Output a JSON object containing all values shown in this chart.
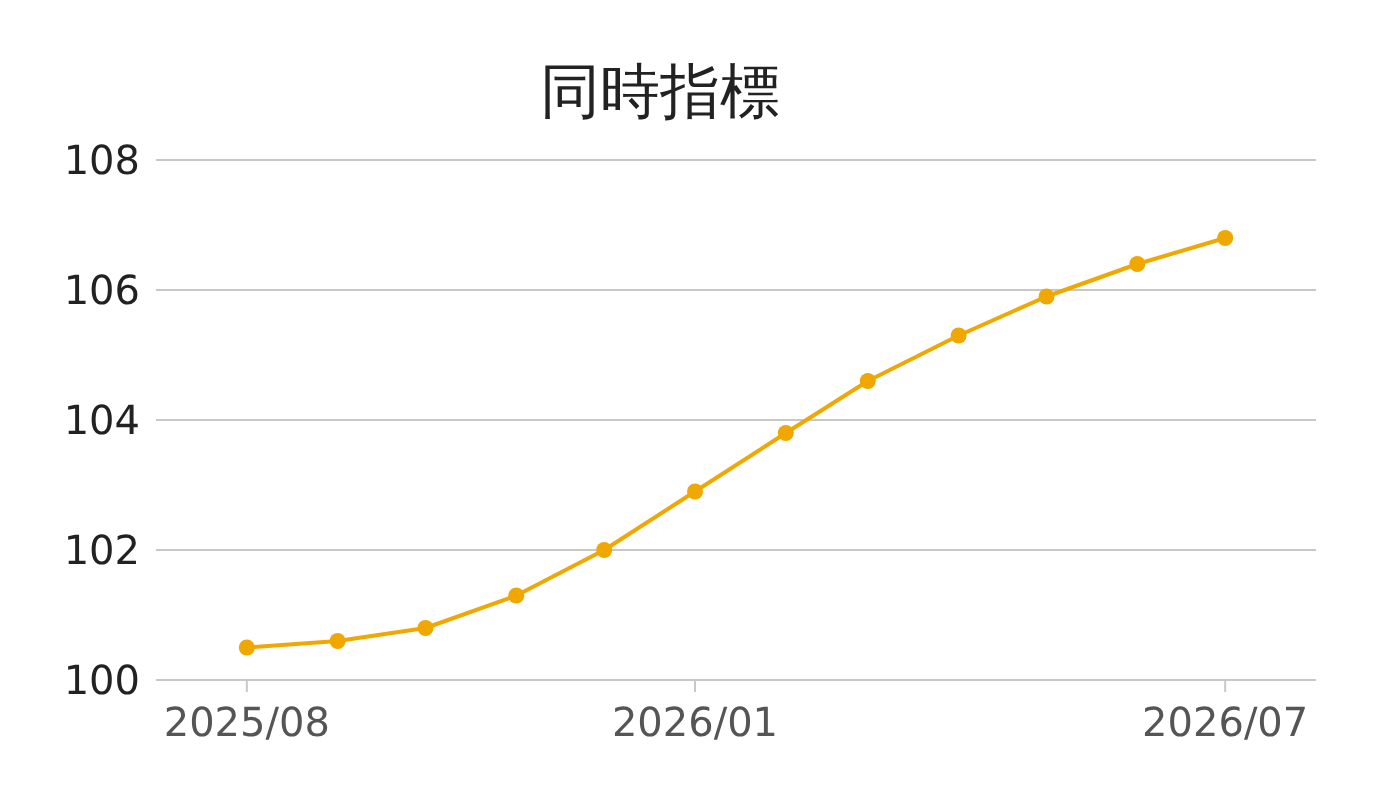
{
  "chart_data": {
    "type": "line",
    "title": "同時指標",
    "x": [
      "2025-08",
      "2025-09",
      "2025-10",
      "2025-11",
      "2025-12",
      "2026-01",
      "2026-02",
      "2026-03",
      "2026-04",
      "2026-05",
      "2026-06",
      "2026-07"
    ],
    "series": [
      {
        "color": "#f0a800",
        "values": [
          100.5,
          100.6,
          100.8,
          101.3,
          102.0,
          102.9,
          103.8,
          104.6,
          105.3,
          105.9,
          106.4,
          106.8
        ]
      }
    ],
    "xlim": [
      "2025-07",
      "2026-08"
    ],
    "xticks": [
      {
        "value": "2025-08",
        "label": "2025/08"
      },
      {
        "value": "2026-01",
        "label": "2026/01"
      },
      {
        "value": "2026-07",
        "label": "2026/07"
      }
    ],
    "ylim": [
      100,
      108
    ],
    "yticks": [
      100,
      102,
      104,
      106,
      108
    ],
    "grid": "y",
    "marker": "circle",
    "line_style": "solid"
  }
}
